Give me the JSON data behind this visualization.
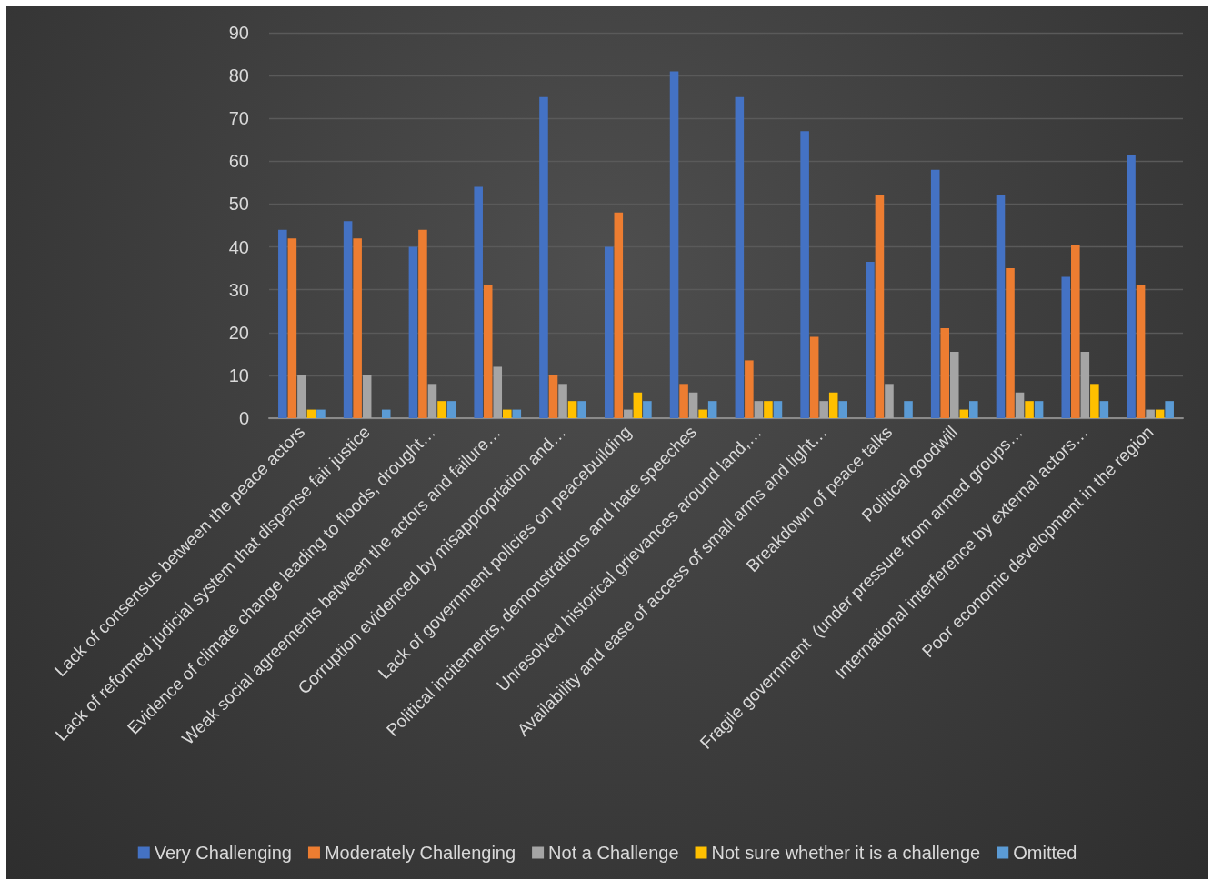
{
  "chart_data": {
    "type": "bar",
    "categories": [
      "Lack of consensus between the peace actors",
      "Lack of reformed judicial system that dispense fair justice",
      "Evidence of climate change leading to floods, drought…",
      "Weak social agreements between the actors and failure…",
      "Corruption evidenced by misappropriation and…",
      "Lack of government policies on peacebuilding",
      "Political incitements, demonstrations and hate speeches",
      "Unresolved historical grievances around land,…",
      "Availability and ease of access of small arms and light…",
      "Breakdown of peace talks",
      "Political goodwill",
      "Fragile government  (under pressure from armed groups…",
      "International interference by external actors…",
      "Poor economic development in the region"
    ],
    "series": [
      {
        "name": "Very Challenging",
        "color": "#4472c4",
        "values": [
          44,
          46,
          40,
          54,
          75,
          40,
          81,
          75,
          67,
          36.5,
          58,
          52,
          33,
          61.5
        ]
      },
      {
        "name": "Moderately Challenging",
        "color": "#ed7d31",
        "values": [
          42,
          42,
          44,
          31,
          10,
          48,
          8,
          13.5,
          19,
          52,
          21,
          35,
          40.5,
          31
        ]
      },
      {
        "name": "Not a Challenge",
        "color": "#a5a5a5",
        "values": [
          10,
          10,
          8,
          12,
          8,
          2,
          6,
          4,
          4,
          8,
          15.5,
          6,
          15.5,
          2
        ]
      },
      {
        "name": "Not sure whether it is a challenge",
        "color": "#ffc000",
        "values": [
          2,
          0,
          4,
          2,
          4,
          6,
          2,
          4,
          6,
          0,
          2,
          4,
          8,
          2
        ]
      },
      {
        "name": "Omitted",
        "color": "#5b9bd5",
        "values": [
          2,
          2,
          4,
          2,
          4,
          4,
          4,
          4,
          4,
          4,
          4,
          4,
          4,
          4
        ]
      }
    ],
    "ylim": [
      0,
      90
    ],
    "yticks": [
      0,
      10,
      20,
      30,
      40,
      50,
      60,
      70,
      80,
      90
    ],
    "grid": "y",
    "legend": "bottom"
  }
}
